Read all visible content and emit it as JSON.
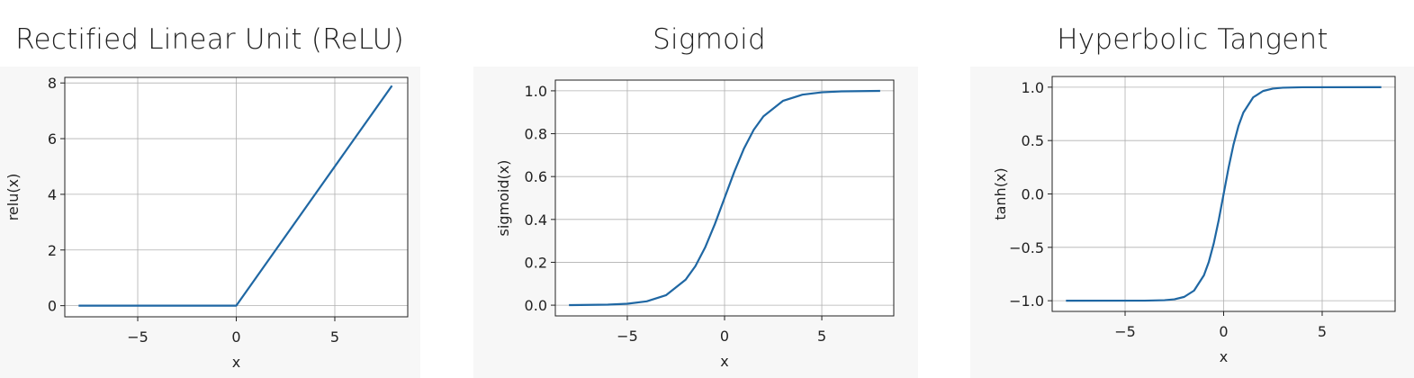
{
  "chart_data": [
    {
      "type": "line",
      "title": "Rectified Linear Unit (ReLU)",
      "xlabel": "x",
      "ylabel": "relu(x)",
      "xlim": [
        -8.7,
        8.7
      ],
      "ylim": [
        -0.4,
        8.2
      ],
      "xticks": [
        -5,
        0,
        5
      ],
      "yticks": [
        0,
        2,
        4,
        6,
        8
      ],
      "grid": true,
      "line_color": "#1f67a3",
      "series": [
        {
          "x": [
            -8,
            -6,
            -4,
            -2,
            0,
            2,
            4,
            6,
            7.9
          ],
          "y": [
            0,
            0,
            0,
            0,
            0,
            2,
            4,
            6,
            7.9
          ]
        }
      ]
    },
    {
      "type": "line",
      "title": "Sigmoid",
      "xlabel": "x",
      "ylabel": "sigmoid(x)",
      "xlim": [
        -8.7,
        8.7
      ],
      "ylim": [
        -0.05,
        1.05
      ],
      "xticks": [
        -5,
        0,
        5
      ],
      "yticks": [
        0.0,
        0.2,
        0.4,
        0.6,
        0.8,
        1.0
      ],
      "ytick_labels": [
        "0.0",
        "0.2",
        "0.4",
        "0.6",
        "0.8",
        "1.0"
      ],
      "grid": true,
      "line_color": "#1f67a3",
      "series": [
        {
          "x": [
            -8,
            -6,
            -5,
            -4,
            -3,
            -2,
            -1.5,
            -1,
            -0.5,
            0,
            0.5,
            1,
            1.5,
            2,
            3,
            4,
            5,
            6,
            8
          ],
          "y": [
            0.0003,
            0.0025,
            0.0067,
            0.018,
            0.047,
            0.119,
            0.182,
            0.269,
            0.378,
            0.5,
            0.622,
            0.731,
            0.818,
            0.881,
            0.953,
            0.982,
            0.993,
            0.9975,
            0.9997
          ]
        }
      ]
    },
    {
      "type": "line",
      "title": "Hyperbolic Tangent",
      "xlabel": "x",
      "ylabel": "tanh(x)",
      "xlim": [
        -8.7,
        8.7
      ],
      "ylim": [
        -1.1,
        1.1
      ],
      "xticks": [
        -5,
        0,
        5
      ],
      "yticks": [
        -1.0,
        -0.5,
        0.0,
        0.5,
        1.0
      ],
      "ytick_labels": [
        "−1.0",
        "−0.5",
        "0.0",
        "0.5",
        "1.0"
      ],
      "grid": true,
      "line_color": "#1f67a3",
      "series": [
        {
          "x": [
            -8,
            -4,
            -3,
            -2.5,
            -2,
            -1.5,
            -1,
            -0.75,
            -0.5,
            -0.25,
            0,
            0.25,
            0.5,
            0.75,
            1,
            1.5,
            2,
            2.5,
            3,
            4,
            8
          ],
          "y": [
            -1.0,
            -0.9993,
            -0.995,
            -0.987,
            -0.964,
            -0.905,
            -0.762,
            -0.635,
            -0.462,
            -0.245,
            0.0,
            0.245,
            0.462,
            0.635,
            0.762,
            0.905,
            0.964,
            0.987,
            0.995,
            0.9993,
            1.0
          ]
        }
      ]
    }
  ]
}
